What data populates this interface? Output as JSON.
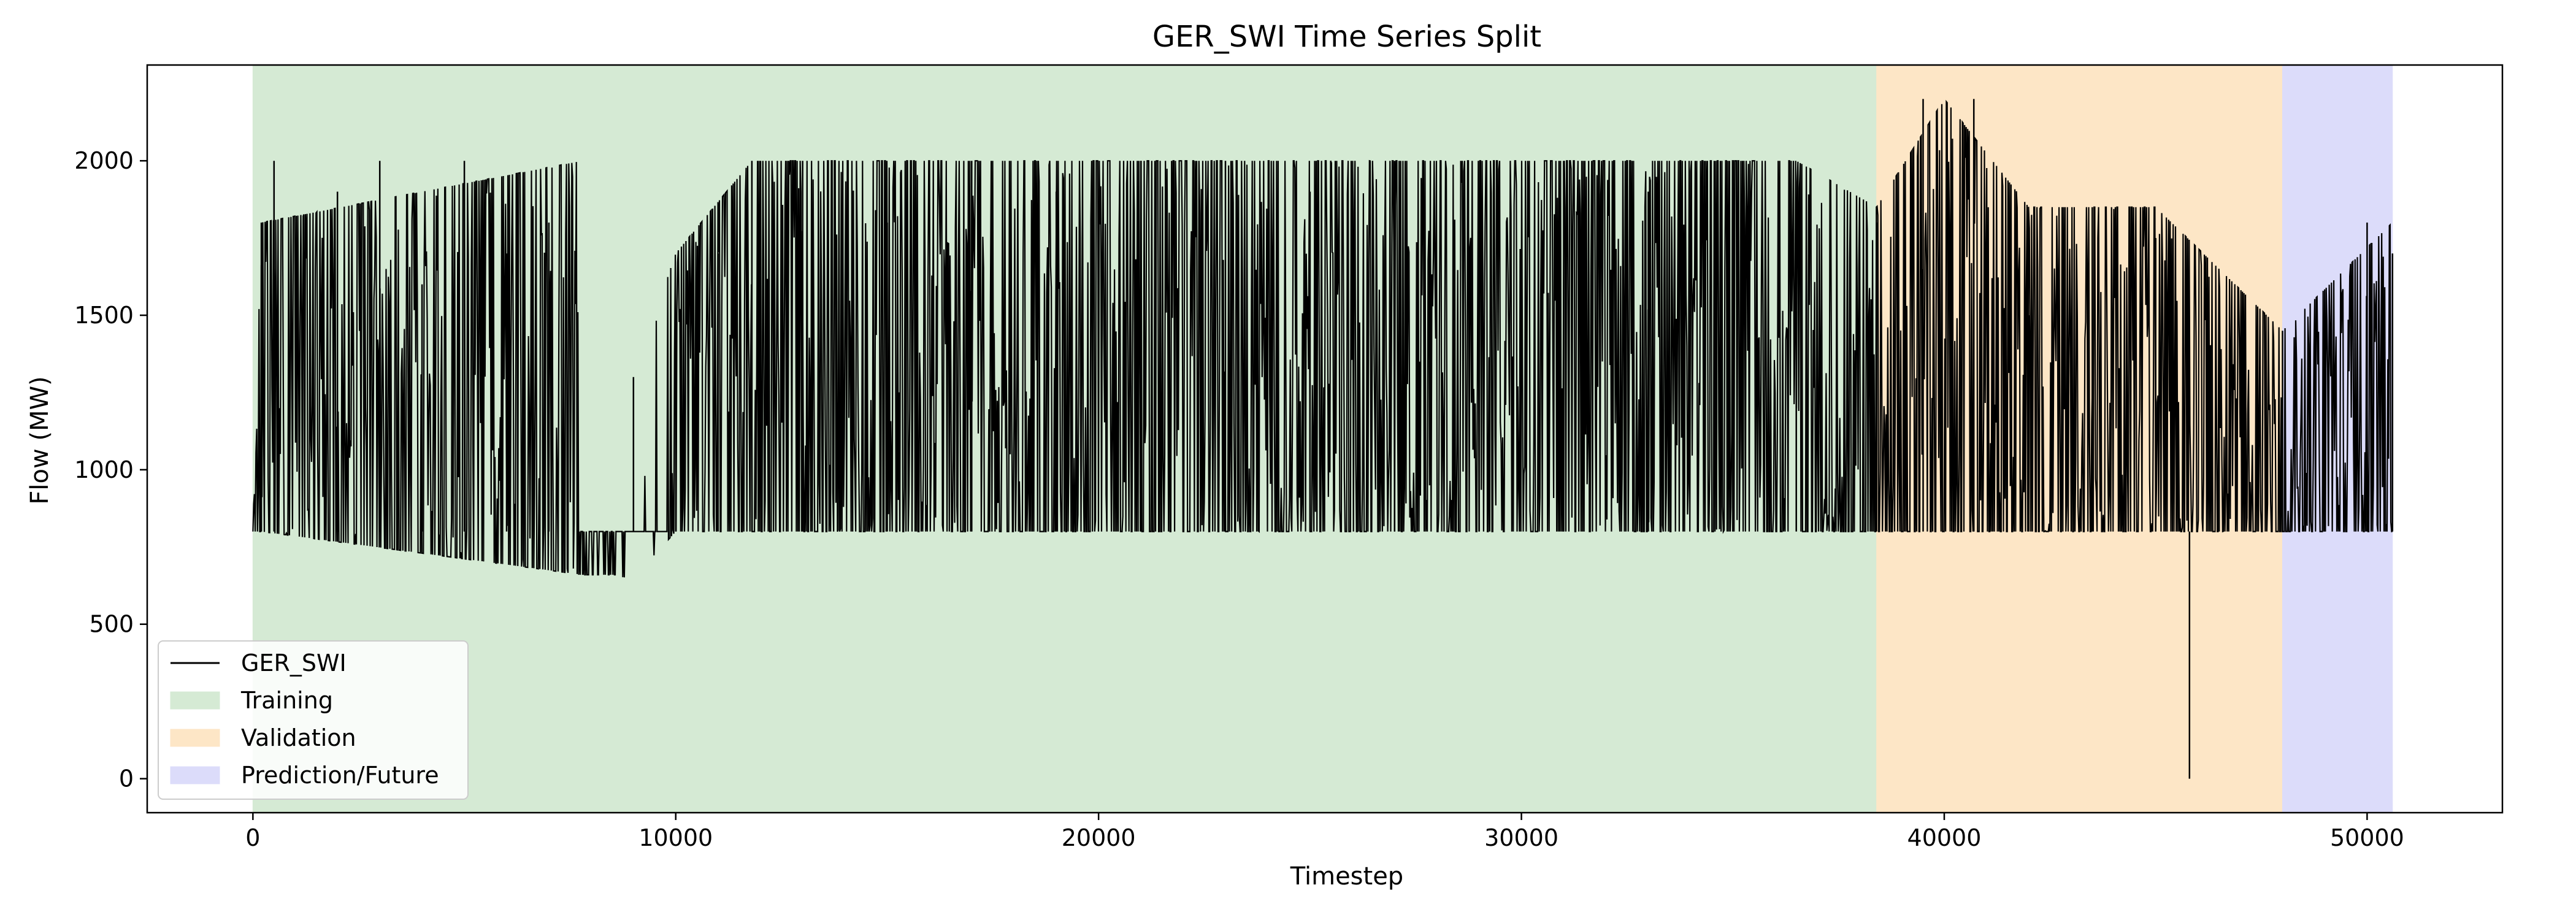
{
  "chart_data": {
    "type": "line",
    "title": "GER_SWI Time Series Split",
    "xlabel": "Timestep",
    "ylabel": "Flow (MW)",
    "xlim": [
      -2500,
      53200
    ],
    "ylim": [
      -110,
      2310
    ],
    "xticks": [
      0,
      10000,
      20000,
      30000,
      40000,
      50000
    ],
    "yticks": [
      0,
      500,
      1000,
      1500,
      2000
    ],
    "grid": false,
    "legend_position": "lower-left",
    "series": [
      {
        "name": "GER_SWI",
        "color": "#000000",
        "description_points": {
          "x": [
            0,
            200,
            500,
            1000,
            2000,
            3000,
            4000,
            5000,
            6000,
            7000,
            7800,
            8500,
            9000,
            10000,
            11000,
            11800,
            13000,
            15000,
            17000,
            19000,
            21000,
            23000,
            25000,
            27000,
            29000,
            31000,
            33000,
            35000,
            36500,
            38400,
            39500,
            40700,
            42000,
            43500,
            45000,
            45800,
            46500,
            48000,
            49000,
            50000,
            50600
          ],
          "y": [
            800,
            1800,
            2000,
            800,
            1900,
            2000,
            1600,
            2000,
            1700,
            1800,
            660,
            800,
            1300,
            1500,
            1700,
            2000,
            2000,
            1800,
            2000,
            1900,
            2000,
            2000,
            1900,
            2000,
            1800,
            2000,
            1900,
            2000,
            1500,
            1800,
            2200,
            2200,
            1500,
            1850,
            1750,
            0,
            1500,
            1450,
            1400,
            1800,
            1700
          ]
        },
        "envelope": {
          "x": [
            0,
            200,
            7800,
            9000,
            10000,
            11800,
            36500,
            38400,
            40000,
            42000,
            45000,
            48000,
            50600
          ],
          "min": [
            800,
            800,
            660,
            650,
            800,
            800,
            800,
            800,
            800,
            800,
            800,
            800,
            800
          ],
          "max": [
            800,
            1800,
            2000,
            1300,
            1700,
            2000,
            2000,
            1850,
            2200,
            1850,
            1850,
            1450,
            1800
          ]
        }
      }
    ],
    "regions": [
      {
        "name": "Training",
        "x": [
          0,
          38400
        ],
        "color": "#d5ead4"
      },
      {
        "name": "Validation",
        "x": [
          38400,
          48000
        ],
        "color": "#fde6c6"
      },
      {
        "name": "Prediction/Future",
        "x": [
          48000,
          50600
        ],
        "color": "#dcdcfa"
      }
    ]
  }
}
